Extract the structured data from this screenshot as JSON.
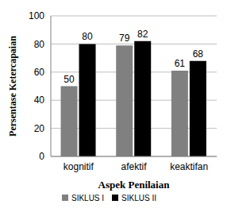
{
  "chart_data": {
    "type": "bar",
    "x_label": "Aspek Penilaian",
    "y_label": "Persentase Ketercapaian",
    "categories": [
      "kognitif",
      "afektif",
      "keaktifan"
    ],
    "series": [
      {
        "name": "SIKLUS I",
        "color": "#808080",
        "values": [
          50,
          79,
          61
        ]
      },
      {
        "name": "SIKLUS II",
        "color": "#000000",
        "values": [
          80,
          82,
          68
        ]
      }
    ],
    "ylim": [
      0,
      100
    ],
    "yticks": [
      0,
      20,
      40,
      60,
      80,
      100
    ],
    "grid": true,
    "legend": "bottom",
    "data_labels": true
  }
}
